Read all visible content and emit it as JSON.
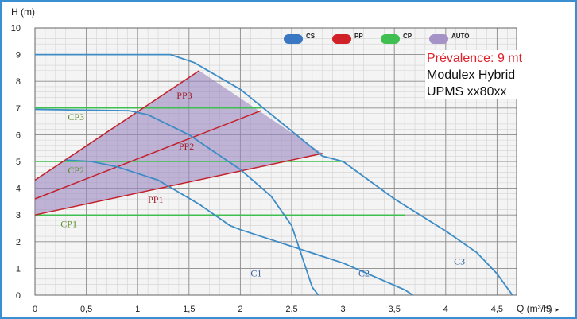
{
  "chart_data": {
    "type": "line",
    "ylabel": "H (m)",
    "xlabel": "Q (m³/h)",
    "xlim": [
      0,
      5.0
    ],
    "ylim": [
      0,
      10
    ],
    "x_ticks": [
      {
        "value": 0,
        "label": "0"
      },
      {
        "value": 0.5,
        "label": "0,5"
      },
      {
        "value": 1,
        "label": "1"
      },
      {
        "value": 1.5,
        "label": "1,5"
      },
      {
        "value": 2,
        "label": "2"
      },
      {
        "value": 2.5,
        "label": "2,5"
      },
      {
        "value": 3,
        "label": "3"
      },
      {
        "value": 3.5,
        "label": "3,5"
      },
      {
        "value": 4,
        "label": "4"
      },
      {
        "value": 4.5,
        "label": "4,5"
      },
      {
        "value": 5,
        "label": "5"
      }
    ],
    "y_ticks": [
      0,
      1,
      2,
      3,
      4,
      5,
      6,
      7,
      8,
      9,
      10
    ],
    "grid": true,
    "legend_position": "top-right",
    "legend": [
      {
        "label": "CS",
        "color": "#3b78c4"
      },
      {
        "label": "PP",
        "color": "#d02028"
      },
      {
        "label": "CP",
        "color": "#3fbf4f"
      },
      {
        "label": "AUTO",
        "color": "#a593c7"
      }
    ],
    "series": [
      {
        "name": "C1",
        "group": "CS",
        "color": "#3d8cc6",
        "points": [
          [
            0,
            6.95
          ],
          [
            0.92,
            6.9
          ],
          [
            1.1,
            6.75
          ],
          [
            1.5,
            6.0
          ],
          [
            2.0,
            4.7
          ],
          [
            2.3,
            3.7
          ],
          [
            2.5,
            2.6
          ],
          [
            2.7,
            0.3
          ],
          [
            2.76,
            0
          ]
        ]
      },
      {
        "name": "C2",
        "group": "CS",
        "color": "#3d8cc6",
        "points": [
          [
            0.3,
            5.05
          ],
          [
            0.55,
            5.0
          ],
          [
            0.8,
            4.8
          ],
          [
            1.2,
            4.3
          ],
          [
            1.6,
            3.4
          ],
          [
            1.9,
            2.6
          ],
          [
            2.0,
            2.45
          ],
          [
            3.0,
            1.2
          ],
          [
            3.6,
            0.2
          ],
          [
            3.68,
            0
          ]
        ]
      },
      {
        "name": "C3",
        "group": "CS",
        "color": "#3d8cc6",
        "points": [
          [
            0,
            9.0
          ],
          [
            1.32,
            9.0
          ],
          [
            1.55,
            8.7
          ],
          [
            2.0,
            7.7
          ],
          [
            2.8,
            5.2
          ],
          [
            3.0,
            5.0
          ],
          [
            3.5,
            3.6
          ],
          [
            4.0,
            2.4
          ],
          [
            4.3,
            1.6
          ],
          [
            4.5,
            0.8
          ],
          [
            4.65,
            0
          ]
        ]
      },
      {
        "name": "PP1",
        "group": "PP",
        "color": "#c4202a",
        "points": [
          [
            0.0,
            3.0
          ],
          [
            2.8,
            5.3
          ]
        ]
      },
      {
        "name": "PP2",
        "group": "PP",
        "color": "#c4202a",
        "points": [
          [
            0.0,
            3.6
          ],
          [
            2.2,
            6.9
          ]
        ]
      },
      {
        "name": "PP3",
        "group": "PP",
        "color": "#c4202a",
        "points": [
          [
            0.0,
            4.3
          ],
          [
            1.6,
            8.4
          ]
        ]
      },
      {
        "name": "CP1",
        "group": "CP",
        "color": "#3fbf4f",
        "points": [
          [
            0.0,
            3.0
          ],
          [
            3.6,
            3.0
          ]
        ]
      },
      {
        "name": "CP2",
        "group": "CP",
        "color": "#3fbf4f",
        "points": [
          [
            0.0,
            5.0
          ],
          [
            3.0,
            5.0
          ]
        ]
      },
      {
        "name": "CP3",
        "group": "CP",
        "color": "#3fbf4f",
        "points": [
          [
            0.0,
            7.0
          ],
          [
            2.2,
            7.0
          ]
        ]
      }
    ],
    "auto_region": {
      "group": "AUTO",
      "color": "#9a85bf",
      "points": [
        [
          0.0,
          3.0
        ],
        [
          2.8,
          5.3
        ],
        [
          1.6,
          8.4
        ],
        [
          0.0,
          4.3
        ]
      ]
    },
    "annotations": [
      {
        "text": "PP3",
        "at": [
          1.38,
          7.35
        ],
        "color": "#a02028"
      },
      {
        "text": "PP2",
        "at": [
          1.4,
          5.45
        ],
        "color": "#a02028"
      },
      {
        "text": "PP1",
        "at": [
          1.1,
          3.45
        ],
        "color": "#a02028"
      },
      {
        "text": "CP3",
        "at": [
          0.32,
          6.55
        ],
        "color": "#5d8f2a"
      },
      {
        "text": "CP2",
        "at": [
          0.32,
          4.55
        ],
        "color": "#5d8f2a"
      },
      {
        "text": "CP1",
        "at": [
          0.25,
          2.55
        ],
        "color": "#5d8f2a"
      },
      {
        "text": "C1",
        "at": [
          2.1,
          0.7
        ],
        "color": "#2f5d9a"
      },
      {
        "text": "C2",
        "at": [
          3.15,
          0.7
        ],
        "color": "#2f5d9a"
      },
      {
        "text": "C3",
        "at": [
          4.08,
          1.15
        ],
        "color": "#2f5d9a"
      }
    ]
  },
  "info_box": {
    "line1": "Prévalence: 9 mt",
    "line2": "Modulex Hybrid",
    "line3": "UPMS xx80xx"
  },
  "arrow_glyph": "▸"
}
